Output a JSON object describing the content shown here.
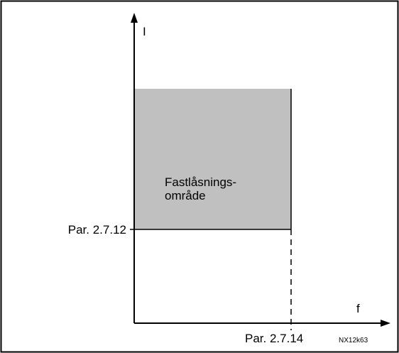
{
  "y_axis_label": "I",
  "x_axis_label": "f",
  "region_label_line1": "Fastlåsnings-",
  "region_label_line2": "område",
  "y_marker_label": "Par. 2.7.12",
  "x_marker_label": "Par. 2.7.14",
  "figure_code": "NX12k63"
}
